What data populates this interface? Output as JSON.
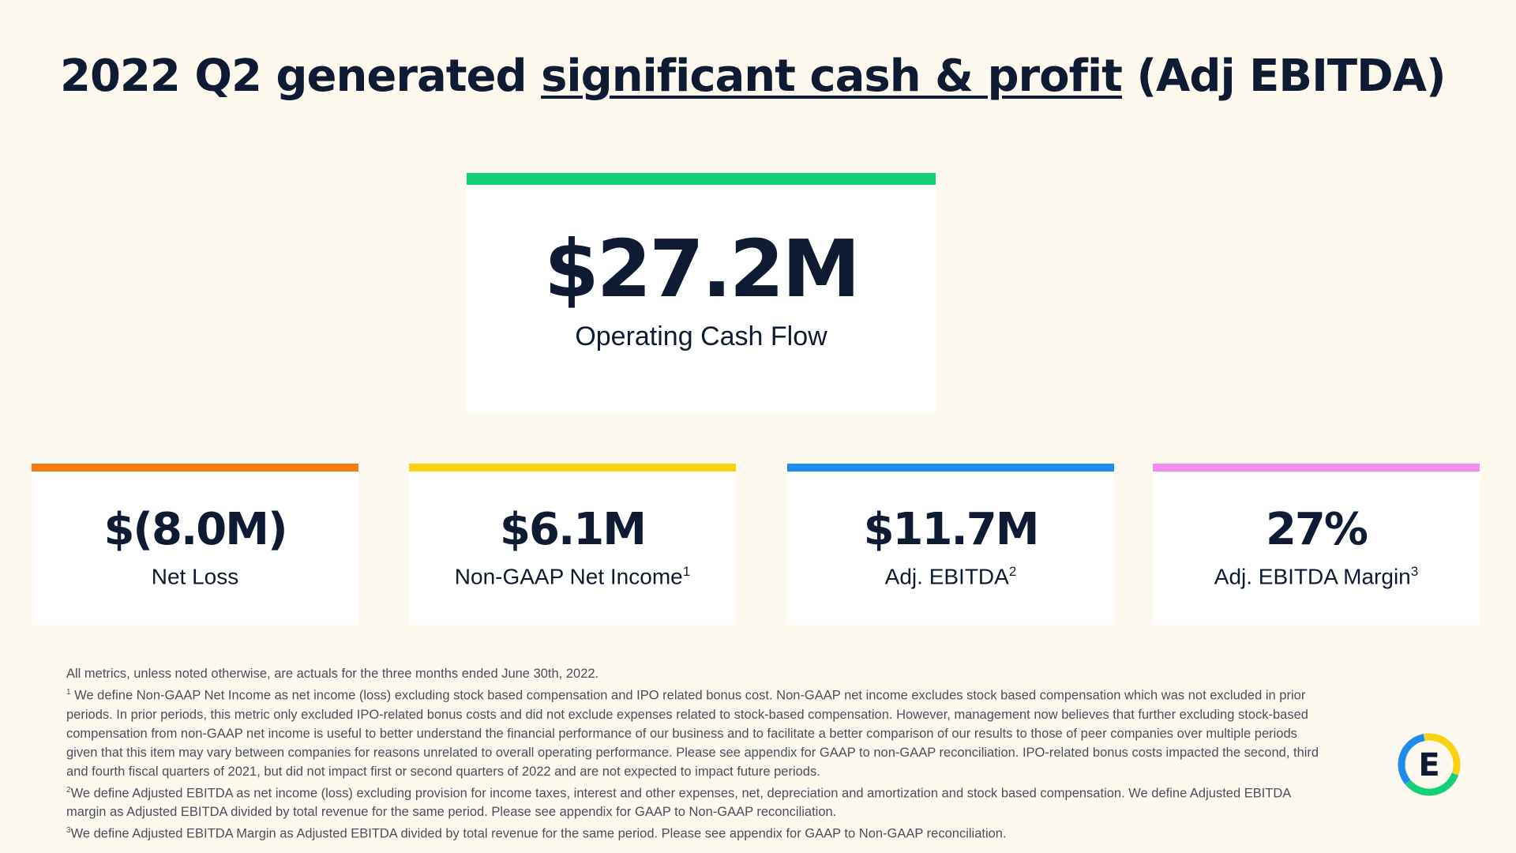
{
  "header": {
    "title_prefix": "2022 Q2 generated ",
    "title_underlined": "significant cash & profit",
    "title_suffix": " (Adj EBITDA)"
  },
  "hero_metric": {
    "value": "$27.2M",
    "label": "Operating Cash Flow",
    "accent_color": "#12cf78"
  },
  "metrics": [
    {
      "value": "$(8.0M)",
      "label": "Net Loss",
      "footnote": "",
      "accent_color": "#f57a12"
    },
    {
      "value": "$6.1M",
      "label": "Non-GAAP Net Income",
      "footnote": "1",
      "accent_color": "#fcd314"
    },
    {
      "value": "$11.7M",
      "label": "Adj. EBITDA",
      "footnote": "2",
      "accent_color": "#1e8ced"
    },
    {
      "value": "27%",
      "label": "Adj. EBITDA Margin",
      "footnote": "3",
      "accent_color": "#f28ced"
    }
  ],
  "footnotes": {
    "intro": "All metrics, unless noted otherwise, are actuals for the three months ended June 30th,  2022.",
    "notes": [
      {
        "mark": "1",
        "text": " We define Non-GAAP Net Income as net income (loss) excluding stock based compensation and IPO related bonus cost. Non-GAAP net income excludes stock based compensation which was not excluded in prior periods. In prior periods, this metric only excluded IPO-related bonus costs and did not exclude expenses related to stock-based compensation. However, management now believes that further excluding stock-based compensation from non-GAAP net income is useful to better understand the financial performance of our business and to facilitate a better comparison of our results to those of peer companies over multiple periods given that this item may vary between companies for reasons unrelated to overall operating performance. Please see appendix for GAAP to non-GAAP reconciliation. IPO-related bonus costs impacted the second, third and fourth fiscal quarters of 2021, but did not impact first or second quarters of 2022 and are not expected to impact future periods."
      },
      {
        "mark": "2",
        "text": "We define Adjusted EBITDA as net income (loss) excluding provision for income taxes, interest and other expenses, net, depreciation and amortization and stock based compensation. We define Adjusted EBITDA margin as Adjusted EBITDA divided by total revenue for the same period. Please see appendix for GAAP to Non-GAAP reconciliation."
      },
      {
        "mark": "3",
        "text": "We define Adjusted EBITDA Margin as Adjusted EBITDA divided by total revenue for the same period. Please see appendix for GAAP to Non-GAAP reconciliation."
      }
    ]
  },
  "logo": {
    "letter": "E",
    "icon": "company-logo"
  }
}
